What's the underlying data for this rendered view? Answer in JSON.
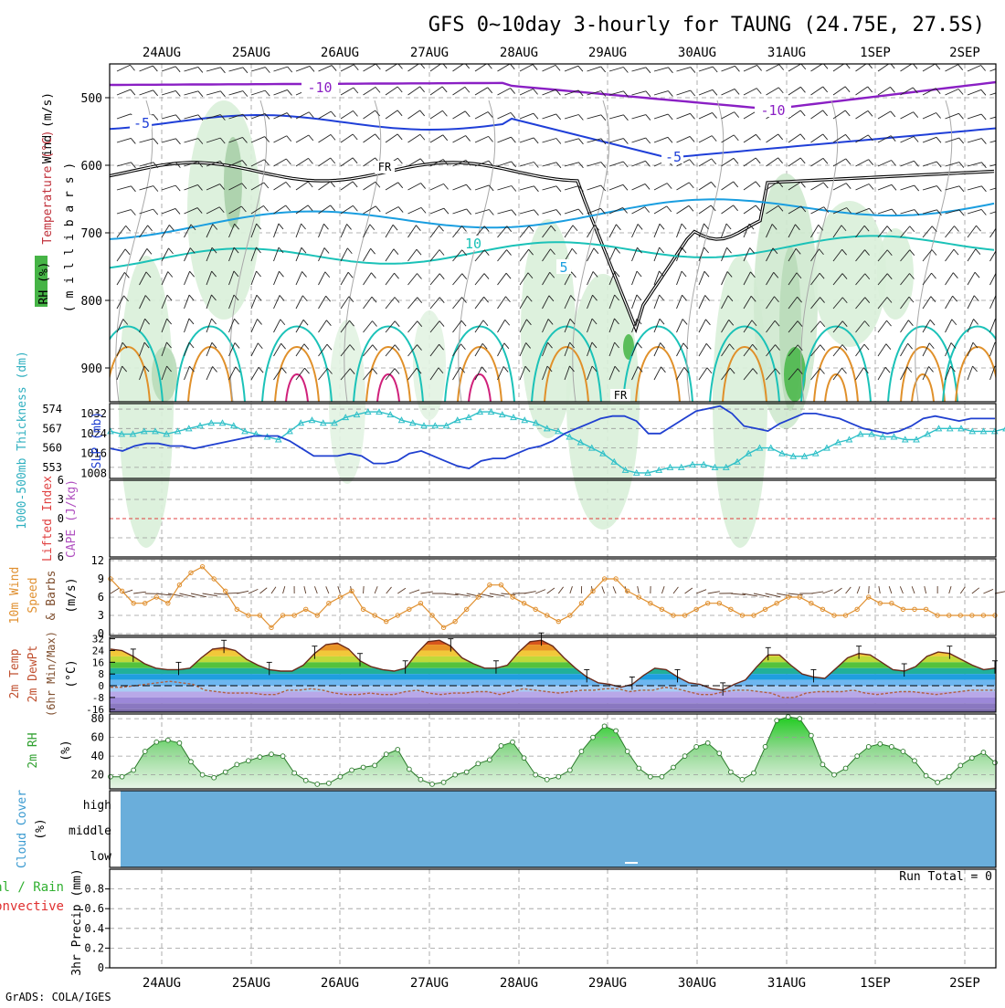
{
  "title": "GFS 0~10day 3-hourly for TAUNG (24.75E, 27.5S)",
  "footer": "GrADS: COLA/IGES",
  "dates": [
    "24AUG",
    "25AUG",
    "26AUG",
    "27AUG",
    "28AUG",
    "29AUG",
    "30AUG",
    "31AUG",
    "1SEP",
    "2SEP"
  ],
  "colors": {
    "frame": "#000000",
    "grid": "#9a9a9a",
    "purple": "#8a1fc4",
    "blue": "#1f3fd8",
    "skyblue": "#1a9ee0",
    "teal": "#1bc2b8",
    "orange": "#e0902a",
    "magenta": "#d0207a",
    "rhgreen": "#3cb83c",
    "slp": "#2040d0",
    "thick": "#30c0c8",
    "wind10": "#e09030",
    "cloud": "#6aaedb"
  },
  "labels": {
    "p1_ylabel_wind": "Wind (m/s)",
    "p1_ylabel_temp": "Temperature (°C)",
    "p1_ylabel_rh": "RH (%)",
    "p1_ylabel_mb": "( m i l l i b a r s )",
    "p2_thick": "1000-500mb Thickness (dm)",
    "p2_slp": "SLP (mb)",
    "p3_li": "Lifted Index",
    "p3_cape": "CAPE (J/kg)",
    "p4_a": "10m Wind",
    "p4_b": "Speed",
    "p4_c": "& Barbs",
    "p4_unit": "(m/s)",
    "p5_a": "2m Temp",
    "p5_b": "2m DewPt",
    "p5_c": "(6hr Min/Max)",
    "p5_unit": "(°C)",
    "p6_a": "2m RH",
    "p6_unit": "(%)",
    "p7_a": "Cloud Cover",
    "p7_unit": "(%)",
    "p7_high": "high",
    "p7_middle": "middle",
    "p7_low": "low",
    "p8_a": "Total / Rain",
    "p8_b": "Convective",
    "p8_c": "3hr Precip (mm)",
    "run_total": "Run Total = 0",
    "fr1": "FR",
    "fr2": "FR",
    "c_m10a": "-10",
    "c_m10b": "-10",
    "c_m5a": "-5",
    "c_m5b": "-5",
    "c_10": "10",
    "c_5": "5"
  },
  "chart_data": [
    {
      "type": "contour",
      "panel": "upper-air time-height",
      "xlabel": "",
      "ylabel": "millibars",
      "ylim": [
        450,
        950
      ],
      "yticks": [
        500,
        600,
        700,
        800,
        900
      ],
      "contour_levels_temp": [
        -10,
        -5,
        0,
        5,
        10,
        15,
        20,
        25,
        30
      ],
      "contour_labels": [
        "-10",
        "-5",
        "FR",
        "10",
        "5"
      ]
    },
    {
      "type": "line",
      "panel": "thickness and slp",
      "series": [
        {
          "name": "1000-500mb Thickness (dm)",
          "axis": "left",
          "ylim": [
            549,
            576
          ],
          "yticks": [
            553,
            560,
            567,
            574
          ],
          "values": [
            566,
            565,
            565,
            566,
            566,
            565,
            566,
            567,
            568,
            569,
            569,
            568,
            566,
            565,
            564,
            563,
            566,
            569,
            570,
            569,
            569,
            571,
            572,
            573,
            573,
            572,
            570,
            569,
            568,
            568,
            568,
            570,
            571,
            573,
            573,
            572,
            571,
            570,
            569,
            567,
            566,
            564,
            562,
            560,
            558,
            555,
            552,
            551,
            551,
            552,
            553,
            553,
            554,
            554,
            553,
            553,
            555,
            558,
            560,
            560,
            558,
            557,
            557,
            558,
            560,
            562,
            563,
            565,
            565,
            564,
            564,
            563,
            563,
            565,
            567,
            567,
            567,
            566,
            566,
            566,
            567
          ]
        },
        {
          "name": "SLP (mb)",
          "axis": "right",
          "ylim": [
            1006,
            1036
          ],
          "yticks": [
            1008,
            1016,
            1024,
            1032
          ],
          "values": [
            1018,
            1017,
            1019,
            1020,
            1020,
            1019,
            1019,
            1018,
            1019,
            1020,
            1021,
            1022,
            1023,
            1023,
            1023,
            1021,
            1018,
            1015,
            1015,
            1015,
            1016,
            1015,
            1012,
            1012,
            1013,
            1016,
            1017,
            1015,
            1013,
            1011,
            1010,
            1013,
            1014,
            1014,
            1016,
            1018,
            1019,
            1021,
            1024,
            1026,
            1028,
            1030,
            1031,
            1031,
            1029,
            1024,
            1024,
            1027,
            1030,
            1033,
            1034,
            1035,
            1032,
            1027,
            1026,
            1025,
            1028,
            1030,
            1032,
            1032,
            1031,
            1030,
            1028,
            1026,
            1025,
            1024,
            1025,
            1027,
            1030,
            1031,
            1030,
            1029,
            1030,
            1030,
            1030
          ]
        }
      ]
    },
    {
      "type": "line",
      "panel": "lifted index and cape",
      "ylim": [
        -6,
        6
      ],
      "yticks": [
        -6,
        -3,
        0,
        3,
        6
      ],
      "ytick_labels": [
        "6",
        "3",
        "0",
        "3",
        "6"
      ],
      "values": []
    },
    {
      "type": "line",
      "panel": "10m wind",
      "ylim": [
        0,
        12
      ],
      "yticks": [
        0,
        3,
        6,
        9,
        12
      ],
      "series": [
        {
          "values": [
            9,
            7,
            5,
            5,
            6,
            5,
            8,
            10,
            11,
            9,
            7,
            4,
            3,
            3,
            1,
            3,
            3,
            4,
            3,
            5,
            6,
            7,
            4,
            3,
            2,
            3,
            4,
            5,
            3,
            1,
            2,
            4,
            6,
            8,
            8,
            6,
            5,
            4,
            3,
            2,
            3,
            5,
            7,
            9,
            9,
            7,
            6,
            5,
            4,
            3,
            3,
            4,
            5,
            5,
            4,
            3,
            3,
            4,
            5,
            6,
            6,
            5,
            4,
            3,
            3,
            4,
            6,
            5,
            5,
            4,
            4,
            4,
            3,
            3,
            3,
            3,
            3,
            3
          ]
        }
      ]
    },
    {
      "type": "area",
      "panel": "2m temp and dewpt",
      "ylim": [
        -18,
        33
      ],
      "yticks": [
        -16,
        -8,
        0,
        8,
        16,
        24,
        32
      ],
      "series": [
        {
          "name": "2m Temp",
          "values": [
            25,
            24,
            20,
            15,
            12,
            11,
            11,
            12,
            19,
            25,
            26,
            24,
            18,
            14,
            11,
            10,
            10,
            14,
            22,
            28,
            29,
            25,
            17,
            13,
            11,
            10,
            12,
            22,
            30,
            31,
            27,
            19,
            15,
            12,
            12,
            14,
            23,
            30,
            31,
            27,
            19,
            12,
            6,
            2,
            1,
            -1,
            1,
            7,
            12,
            11,
            6,
            2,
            1,
            -2,
            -3,
            1,
            4,
            13,
            21,
            21,
            14,
            8,
            6,
            5,
            12,
            19,
            22,
            21,
            16,
            11,
            10,
            13,
            20,
            23,
            22,
            18,
            14,
            11,
            12
          ]
        },
        {
          "name": "2m DewPt",
          "values": [
            -1,
            -1,
            0,
            1,
            2,
            3,
            2,
            1,
            -3,
            -4,
            -5,
            -5,
            -5,
            -6,
            -6,
            -3,
            -3,
            -2,
            -3,
            -5,
            -6,
            -6,
            -5,
            -6,
            -6,
            -4,
            -3,
            -5,
            -6,
            -5,
            -5,
            -4,
            -4,
            -6,
            -4,
            -2,
            -3,
            -4,
            -5,
            -4,
            -3,
            -3,
            -2,
            -2,
            -4,
            -3,
            -3,
            -1,
            -2,
            -4,
            -6,
            -6,
            -4,
            -3,
            -3,
            -4,
            -5,
            -8,
            -8,
            -5,
            -4,
            -4,
            -4,
            -3,
            -5,
            -6,
            -5,
            -4,
            -4,
            -5,
            -6,
            -5,
            -4,
            -3,
            -3,
            -3
          ]
        }
      ]
    },
    {
      "type": "area",
      "panel": "2m rh",
      "ylim": [
        5,
        85
      ],
      "yticks": [
        20,
        40,
        60,
        80
      ],
      "values": [
        18,
        18,
        25,
        45,
        55,
        57,
        54,
        34,
        20,
        17,
        23,
        31,
        35,
        39,
        42,
        40,
        22,
        14,
        10,
        11,
        18,
        25,
        28,
        30,
        42,
        47,
        26,
        15,
        10,
        12,
        20,
        23,
        32,
        36,
        51,
        55,
        38,
        20,
        15,
        18,
        25,
        45,
        60,
        72,
        67,
        45,
        27,
        18,
        18,
        28,
        40,
        50,
        54,
        43,
        23,
        15,
        22,
        50,
        78,
        82,
        80,
        62,
        31,
        20,
        27,
        40,
        50,
        53,
        50,
        45,
        35,
        19,
        12,
        18,
        30,
        38,
        44,
        33
      ]
    },
    {
      "type": "area",
      "panel": "cloud cover",
      "ylim": [
        0,
        3
      ],
      "ytick_labels": [
        "high",
        "middle",
        "low"
      ],
      "values": []
    },
    {
      "type": "bar",
      "panel": "3hr precip",
      "ylim": [
        0,
        1
      ],
      "yticks": [
        0,
        0.2,
        0.4,
        0.6,
        0.8
      ],
      "values": []
    }
  ]
}
